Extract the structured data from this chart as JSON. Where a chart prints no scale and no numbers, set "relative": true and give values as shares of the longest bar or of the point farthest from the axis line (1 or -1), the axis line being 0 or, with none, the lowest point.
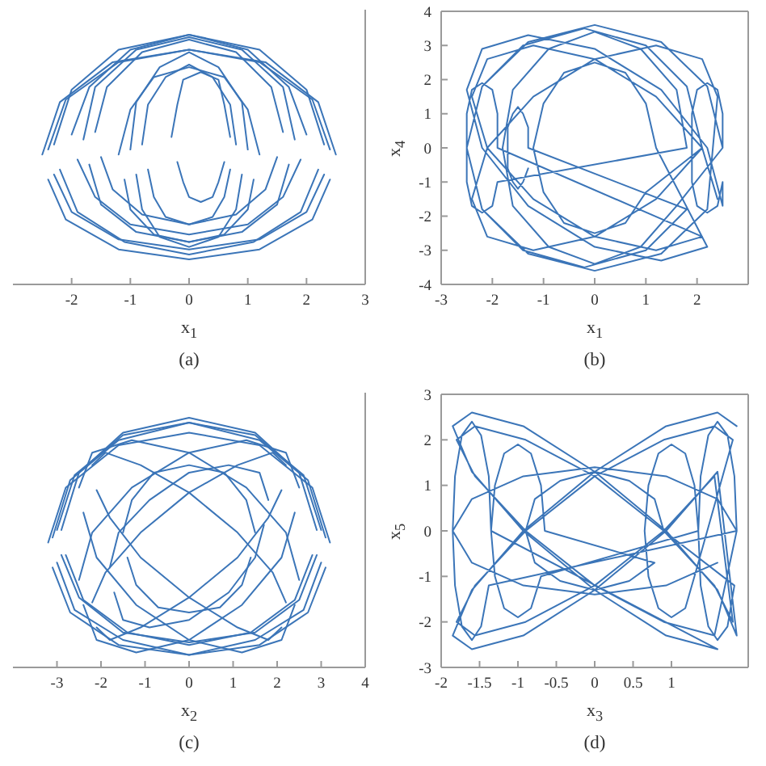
{
  "chart_data": [
    {
      "type": "line",
      "xlabel": "x$_{1}$",
      "annotations": [
        "(a)"
      ],
      "relative": true,
      "tick_labels": "x",
      "xlim": [
        -3,
        3
      ],
      "xticks": [
        -2,
        -1,
        0,
        1,
        2,
        3
      ],
      "series": [
        {
          "color": "#3b75b8",
          "x": [
            2.5,
            2.2,
            1.3,
            0,
            -1.3,
            -2.2,
            -2.5
          ],
          "values": [
            0.52,
            0.73,
            0.89,
            0.94,
            0.89,
            0.73,
            0.52
          ]
        },
        {
          "color": "#3b75b8",
          "x": [
            -2.4,
            -2.1,
            -1.2,
            0,
            1.2,
            2.1,
            2.4
          ],
          "values": [
            0.42,
            0.26,
            0.14,
            0.1,
            0.14,
            0.26,
            0.42
          ]
        },
        {
          "color": "#3b75b8",
          "x": [
            2.3,
            2,
            1.2,
            0,
            -1.2,
            -2,
            -2.3
          ],
          "values": [
            0.56,
            0.78,
            0.94,
            1,
            0.94,
            0.78,
            0.56
          ]
        },
        {
          "color": "#3b75b8",
          "x": [
            -2.2,
            -1.9,
            -1.1,
            0,
            1.1,
            1.9,
            2.2
          ],
          "values": [
            0.46,
            0.29,
            0.17,
            0.12,
            0.17,
            0.29,
            0.46
          ]
        },
        {
          "color": "#3b75b8",
          "x": [
            2,
            1.7,
            1,
            0,
            -1,
            -1.7,
            -2
          ],
          "values": [
            0.6,
            0.79,
            0.94,
            1,
            0.94,
            0.79,
            0.6
          ]
        },
        {
          "color": "#3b75b8",
          "x": [
            -1.9,
            -1.6,
            -1,
            0,
            1,
            1.6,
            1.9
          ],
          "values": [
            0.5,
            0.35,
            0.24,
            0.2,
            0.24,
            0.35,
            0.5
          ]
        },
        {
          "color": "#3b75b8",
          "x": [
            1.6,
            1.4,
            0.8,
            0,
            -0.8,
            -1.4,
            -1.6
          ],
          "values": [
            0.61,
            0.79,
            0.93,
            0.98,
            0.93,
            0.79,
            0.61
          ]
        },
        {
          "color": "#3b75b8",
          "x": [
            -1.5,
            -1.3,
            -0.8,
            0,
            0.8,
            1.3,
            1.5
          ],
          "values": [
            0.51,
            0.38,
            0.28,
            0.24,
            0.28,
            0.38,
            0.51
          ]
        },
        {
          "color": "#3b75b8",
          "x": [
            1.2,
            1,
            0.6,
            0,
            -0.6,
            -1,
            -1.2
          ],
          "values": [
            0.52,
            0.7,
            0.83,
            0.87,
            0.83,
            0.7,
            0.52
          ]
        },
        {
          "color": "#3b75b8",
          "x": [
            -1.1,
            -1,
            -0.6,
            0,
            0.6,
            1,
            1.1
          ],
          "values": [
            0.42,
            0.3,
            0.2,
            0.17,
            0.2,
            0.3,
            0.42
          ]
        },
        {
          "color": "#3b75b8",
          "x": [
            0.8,
            0.7,
            0.4,
            0,
            -0.4,
            -0.7,
            -0.8
          ],
          "values": [
            0.56,
            0.72,
            0.83,
            0.88,
            0.83,
            0.72,
            0.56
          ]
        },
        {
          "color": "#3b75b8",
          "x": [
            -0.7,
            -0.6,
            -0.4,
            0,
            0.4,
            0.6,
            0.7
          ],
          "values": [
            0.46,
            0.35,
            0.27,
            0.24,
            0.27,
            0.35,
            0.46
          ]
        },
        {
          "color": "#3b75b8",
          "x": [
            0.7,
            0.6,
            0.5,
            0.2,
            -0.1,
            -0.2,
            -0.3
          ],
          "values": [
            0.59,
            0.72,
            0.82,
            0.85,
            0.82,
            0.72,
            0.59
          ]
        },
        {
          "color": "#3b75b8",
          "x": [
            -0.2,
            -0.1,
            0,
            0.2,
            0.4,
            0.5,
            0.6
          ],
          "values": [
            0.49,
            0.41,
            0.35,
            0.33,
            0.35,
            0.41,
            0.49
          ]
        },
        {
          "color": "#3b75b8",
          "x": [
            1,
            0.9,
            0.5,
            0,
            -0.5,
            -0.9,
            -1
          ],
          "values": [
            0.54,
            0.73,
            0.87,
            0.93,
            0.87,
            0.73,
            0.54
          ]
        },
        {
          "color": "#3b75b8",
          "x": [
            -0.9,
            -0.8,
            -0.5,
            0,
            0.5,
            0.8,
            0.9
          ],
          "values": [
            0.44,
            0.3,
            0.19,
            0.15,
            0.19,
            0.3,
            0.44
          ]
        },
        {
          "color": "#3b75b8",
          "x": [
            1.8,
            1.6,
            0.9,
            0,
            -0.9,
            -1.6,
            -1.8
          ],
          "values": [
            0.58,
            0.79,
            0.94,
            0.99,
            0.94,
            0.79,
            0.58
          ]
        },
        {
          "color": "#3b75b8",
          "x": [
            -1.7,
            -1.5,
            -0.9,
            0,
            0.9,
            1.5,
            1.7
          ],
          "values": [
            0.48,
            0.32,
            0.21,
            0.17,
            0.21,
            0.32,
            0.48
          ]
        },
        {
          "color": "#3b75b8",
          "x": [
            2.4,
            2.1,
            1.2,
            0,
            -1.2,
            -2.1,
            -2.4
          ],
          "values": [
            0.54,
            0.74,
            0.89,
            0.94,
            0.89,
            0.74,
            0.54
          ]
        },
        {
          "color": "#3b75b8",
          "x": [
            -2.3,
            -2,
            -1.2,
            0,
            1.2,
            2,
            2.3
          ],
          "values": [
            0.44,
            0.29,
            0.18,
            0.14,
            0.18,
            0.29,
            0.44
          ]
        }
      ]
    },
    {
      "type": "line",
      "xlabel": "x$_{1}$",
      "ylabel": "x$_{4}$",
      "annotations": [
        "(b)"
      ],
      "xlim": [
        -3,
        3
      ],
      "xticks": [
        -3,
        -2,
        -1,
        0,
        1,
        2
      ],
      "ylim": [
        -4,
        4
      ],
      "yticks": [
        -4,
        -3,
        -2,
        -1,
        0,
        1,
        2,
        3,
        4
      ],
      "series": [
        {
          "color": "#3b75b8",
          "x": [
            2.5,
            2.2,
            1.3,
            0,
            -1.3,
            -2.2,
            -2.5,
            -2.2,
            -1.3,
            0,
            1.3,
            2.2,
            2.4,
            2.1,
            1.2,
            0,
            -1.2,
            -2.1,
            -2.4,
            -2.1,
            -1.2,
            0,
            1.2,
            2.1,
            2.4,
            2.1,
            1.2,
            0,
            -1.2,
            -2.1,
            -2.4,
            -2.1,
            -1.2,
            0,
            1.2,
            2.1,
            -1.9,
            -1.9,
            -2,
            -2.2,
            -2.4,
            -2.5,
            -2.5,
            -2.5,
            -2.4,
            -2.2,
            -2,
            -1.9,
            1.8,
            1.6,
            0.9,
            0,
            -0.9,
            -1.6,
            -1.8,
            -1.6,
            -0.9,
            0,
            0.9,
            1.6,
            2.5,
            2.5,
            2.4,
            2.2,
            2,
            1.9,
            1.9,
            1.9,
            2,
            2.2,
            2.4,
            2.5,
            2.5,
            2.2,
            1.3,
            0,
            -1.3,
            -2.2,
            -2.5,
            -2.2,
            -1.3,
            0,
            1.3,
            2.2,
            1.2,
            1,
            0.6,
            0,
            -0.6,
            -1,
            -1.2,
            -1,
            -0.6,
            0,
            0.6,
            1,
            2.1,
            1.8,
            1,
            -0.2,
            -1.4,
            -2.2,
            -2.5,
            -2.2,
            -1.4,
            -0.2,
            1,
            1.8,
            -1.3,
            -1.3,
            -1.4,
            -1.5,
            -1.6,
            -1.7,
            -1.7,
            -1.7,
            -1.6,
            -1.5,
            -1.4,
            -1.3
          ],
          "values": [
            0,
            1.8,
            3.1,
            3.6,
            3.1,
            1.8,
            0,
            -1.8,
            -3.1,
            -3.6,
            -3.1,
            -1.8,
            1.5,
            2.6,
            3,
            2.6,
            1.5,
            0,
            -1.5,
            -2.6,
            -3,
            -2.6,
            -1.5,
            0,
            -1.5,
            0,
            1.5,
            2.6,
            3,
            2.6,
            1.5,
            0,
            -1.5,
            -2.6,
            -3,
            -2.6,
            0,
            1,
            1.7,
            1.9,
            1.7,
            1,
            0,
            -1,
            -1.7,
            -1.9,
            -1.7,
            -1,
            0,
            1.7,
            2.9,
            3.4,
            2.9,
            1.7,
            0,
            -1.7,
            -2.9,
            -3.4,
            -2.9,
            -1.7,
            0,
            1,
            1.7,
            1.9,
            1.7,
            1,
            0,
            -1,
            -1.7,
            -1.9,
            -1.7,
            -1,
            -1.7,
            0,
            1.7,
            2.9,
            3.3,
            2.9,
            1.7,
            0,
            -1.7,
            -2.9,
            -3.3,
            -2.9,
            0,
            1.3,
            2.2,
            2.5,
            2.2,
            1.3,
            0,
            -1.3,
            -2.2,
            -2.5,
            -2.2,
            -1.3,
            0,
            1.8,
            3,
            3.5,
            3,
            1.8,
            0,
            -1.8,
            -3,
            -3.5,
            -3,
            -1.8,
            0,
            0.6,
            1,
            1.2,
            1,
            0.6,
            0,
            -0.6,
            -1,
            -1.2,
            -1,
            -0.6
          ]
        }
      ]
    },
    {
      "type": "line",
      "xlabel": "x$_{2}$",
      "annotations": [
        "(c)"
      ],
      "relative": true,
      "tick_labels": "x",
      "xlim": [
        -4,
        4
      ],
      "xticks": [
        -3,
        -2,
        -1,
        0,
        1,
        2,
        3,
        4
      ],
      "series": [
        {
          "color": "#3b75b8",
          "x": [
            3.1,
            2.7,
            1.6,
            0,
            -1.6,
            -2.7,
            -3.1
          ],
          "values": [
            0.52,
            0.75,
            0.91,
            0.98,
            0.91,
            0.75,
            0.52
          ]
        },
        {
          "color": "#3b75b8",
          "x": [
            -3,
            -2.6,
            -1.5,
            0,
            1.5,
            2.6,
            3
          ],
          "values": [
            0.42,
            0.23,
            0.11,
            0.05,
            0.11,
            0.23,
            0.42
          ]
        },
        {
          "color": "#3b75b8",
          "x": [
            2.5,
            2.2,
            1.3,
            0,
            -1.3,
            -2.2,
            -2.5
          ],
          "values": [
            0.72,
            0.86,
            0.91,
            0.86,
            0.72,
            0.54,
            0.35
          ]
        },
        {
          "color": "#3b75b8",
          "x": [
            -2.4,
            -2.1,
            -1.2,
            0,
            1.2,
            2.1,
            2.4
          ],
          "values": [
            0.25,
            0.11,
            0.06,
            0.11,
            0.25,
            0.44,
            0.62
          ]
        },
        {
          "color": "#3b75b8",
          "x": [
            2.5,
            2.2,
            1.3,
            0,
            -1.3,
            -2.2,
            -2.5
          ],
          "values": [
            0.35,
            0.54,
            0.72,
            0.86,
            0.91,
            0.86,
            0.72
          ]
        },
        {
          "color": "#3b75b8",
          "x": [
            -2.4,
            -2.1,
            -1.2,
            0,
            1.2,
            2.1,
            2.4
          ],
          "values": [
            0.62,
            0.44,
            0.25,
            0.11,
            0.06,
            0.11,
            0.25
          ]
        },
        {
          "color": "#3b75b8",
          "x": [
            3,
            2.6,
            1.5,
            0,
            -1.5,
            -2.6,
            -3
          ],
          "values": [
            0.55,
            0.77,
            0.93,
            0.98,
            0.93,
            0.77,
            0.55
          ]
        },
        {
          "color": "#3b75b8",
          "x": [
            -2.9,
            -2.5,
            -1.5,
            0,
            1.5,
            2.5,
            2.9
          ],
          "values": [
            0.45,
            0.28,
            0.14,
            0.1,
            0.14,
            0.27,
            0.45
          ]
        },
        {
          "color": "#3b75b8",
          "x": [
            2.2,
            1.9,
            1.1,
            0,
            -1.1,
            -1.9,
            -2.2
          ],
          "values": [
            0.81,
            0.86,
            0.81,
            0.7,
            0.54,
            0.38,
            0.26
          ]
        },
        {
          "color": "#3b75b8",
          "x": [
            -2.1,
            -1.8,
            -1.1,
            0,
            1.1,
            1.8,
            2.1
          ],
          "values": [
            0.16,
            0.11,
            0.16,
            0.28,
            0.44,
            0.6,
            0.71
          ]
        },
        {
          "color": "#3b75b8",
          "x": [
            2.2,
            1.9,
            1.1,
            0,
            -1.1,
            -1.9,
            -2.2
          ],
          "values": [
            0.26,
            0.38,
            0.54,
            0.7,
            0.81,
            0.86,
            0.81
          ]
        },
        {
          "color": "#3b75b8",
          "x": [
            -2.1,
            -1.8,
            -1.1,
            0,
            1.1,
            1.8,
            2.1
          ],
          "values": [
            0.71,
            0.6,
            0.44,
            0.28,
            0.16,
            0.11,
            0.16
          ]
        },
        {
          "color": "#3b75b8",
          "x": [
            3.2,
            2.8,
            1.6,
            0,
            -1.6,
            -2.8,
            -3.2
          ],
          "values": [
            0.5,
            0.72,
            0.89,
            0.94,
            0.89,
            0.72,
            0.5
          ]
        },
        {
          "color": "#3b75b8",
          "x": [
            -3.1,
            -2.7,
            -1.6,
            0,
            1.6,
            2.7,
            3.1
          ],
          "values": [
            0.4,
            0.22,
            0.09,
            0.05,
            0.09,
            0.22,
            0.4
          ]
        },
        {
          "color": "#3b75b8",
          "x": [
            1.5,
            1.3,
            0.8,
            0,
            -0.8,
            -1.3,
            -1.5
          ],
          "values": [
            0.54,
            0.67,
            0.78,
            0.81,
            0.78,
            0.67,
            0.54
          ]
        },
        {
          "color": "#3b75b8",
          "x": [
            -1.4,
            -1.2,
            -0.7,
            0,
            0.7,
            1.2,
            1.4
          ],
          "values": [
            0.44,
            0.33,
            0.24,
            0.22,
            0.24,
            0.33,
            0.44
          ]
        },
        {
          "color": "#3b75b8",
          "x": [
            1.8,
            1.6,
            0.9,
            0,
            -0.9,
            -1.6,
            -1.8
          ],
          "values": [
            0.67,
            0.78,
            0.81,
            0.78,
            0.67,
            0.54,
            0.4
          ]
        },
        {
          "color": "#3b75b8",
          "x": [
            -1.7,
            -1.5,
            -0.9,
            0,
            0.9,
            1.5,
            1.7
          ],
          "values": [
            0.3,
            0.19,
            0.16,
            0.19,
            0.3,
            0.44,
            0.57
          ]
        },
        {
          "color": "#3b75b8",
          "x": [
            2.9,
            2.5,
            1.5,
            0,
            -1.5,
            -2.5,
            -2.9
          ],
          "values": [
            0.55,
            0.78,
            0.94,
            1,
            0.94,
            0.78,
            0.55
          ]
        },
        {
          "color": "#3b75b8",
          "x": [
            -2.8,
            -2.4,
            -1.4,
            0,
            1.4,
            2.4,
            2.8
          ],
          "values": [
            0.45,
            0.27,
            0.14,
            0.09,
            0.14,
            0.27,
            0.45
          ]
        }
      ]
    },
    {
      "type": "line",
      "xlabel": "x$_{3}$",
      "ylabel": "x$_{5}$",
      "annotations": [
        "(d)"
      ],
      "xlim": [
        -2,
        2
      ],
      "xticks": [
        -2,
        -1.5,
        -1,
        -0.5,
        0,
        0.5,
        1
      ],
      "ylim": [
        -3,
        3
      ],
      "yticks": [
        -3,
        -2,
        -1,
        0,
        1,
        2,
        3
      ],
      "series": [
        {
          "color": "#3b75b8",
          "x": [
            1.85,
            1.6,
            0.93,
            0,
            -0.93,
            -1.6,
            -1.85,
            -1.6,
            -0.93,
            0,
            0.93,
            1.6,
            1.85,
            1.6,
            0.93,
            0,
            -0.93,
            -1.6,
            -1.85,
            -1.6,
            -0.93,
            0,
            0.93,
            1.6,
            -1.35,
            -1.38,
            -1.48,
            -1.6,
            -1.73,
            -1.82,
            -1.85,
            -1.82,
            -1.73,
            -1.6,
            -1.48,
            -1.38,
            1.85,
            1.82,
            1.73,
            1.6,
            1.48,
            1.38,
            1.35,
            1.38,
            1.48,
            1.6,
            1.73,
            1.82,
            0.9,
            0.78,
            0.45,
            0,
            -0.45,
            -0.78,
            -0.9,
            -0.78,
            -0.45,
            0,
            0.45,
            0.78,
            -0.65,
            -0.7,
            -0.83,
            -1,
            -1.18,
            -1.3,
            -1.35,
            -1.3,
            -1.18,
            -1,
            -0.83,
            -0.7,
            1.35,
            1.3,
            1.18,
            1,
            0.83,
            0.7,
            0.65,
            0.7,
            0.83,
            1,
            1.18,
            1.3,
            1.8,
            1.56,
            0.9,
            0,
            -0.9,
            -1.56,
            -1.8,
            -1.56,
            -0.9,
            0,
            0.9,
            1.56,
            1.8,
            1.56,
            0.9,
            0,
            -0.9,
            -1.56,
            -1.8,
            -1.56,
            -0.9,
            0,
            0.9,
            1.56,
            1.85,
            1.6,
            0.93,
            0,
            -0.93,
            -1.6,
            -1.85,
            -1.6,
            -0.93,
            0,
            0.93,
            1.6
          ],
          "values": [
            2.3,
            2.6,
            2.3,
            1.3,
            0,
            -1.3,
            -2.3,
            -2.6,
            -2.3,
            -1.3,
            0,
            1.3,
            -2.3,
            -1.3,
            0,
            1.3,
            2.3,
            2.6,
            2.3,
            1.3,
            0,
            -1.3,
            -2.3,
            -2.6,
            0,
            1.2,
            2.1,
            2.4,
            2.1,
            1.2,
            0,
            -1.2,
            -2.1,
            -2.4,
            -2.1,
            -1.2,
            0,
            1.2,
            2.1,
            2.4,
            2.1,
            1.2,
            0,
            -1.2,
            -2.1,
            -2.4,
            -2.1,
            -1.2,
            0,
            0.7,
            1.1,
            1.3,
            1.1,
            0.7,
            0,
            -0.7,
            -1.1,
            -1.3,
            -1.1,
            -0.7,
            0,
            1,
            1.7,
            1.9,
            1.7,
            1,
            0,
            -1,
            -1.7,
            -1.9,
            -1.7,
            -1,
            0,
            1,
            1.7,
            1.9,
            1.7,
            1,
            0,
            -1,
            -1.7,
            -1.9,
            -1.7,
            -1,
            2,
            2.3,
            2,
            1.2,
            0,
            -1.2,
            -2,
            -2.3,
            -2,
            -1.2,
            0,
            1.2,
            -2,
            -1.2,
            0,
            1.2,
            2,
            2.3,
            2,
            1.2,
            0,
            -1.2,
            -2,
            -2.3,
            0,
            0.7,
            1.2,
            1.4,
            1.2,
            0.7,
            0,
            -0.7,
            -1.2,
            -1.4,
            -1.2,
            -0.7
          ]
        }
      ]
    }
  ]
}
